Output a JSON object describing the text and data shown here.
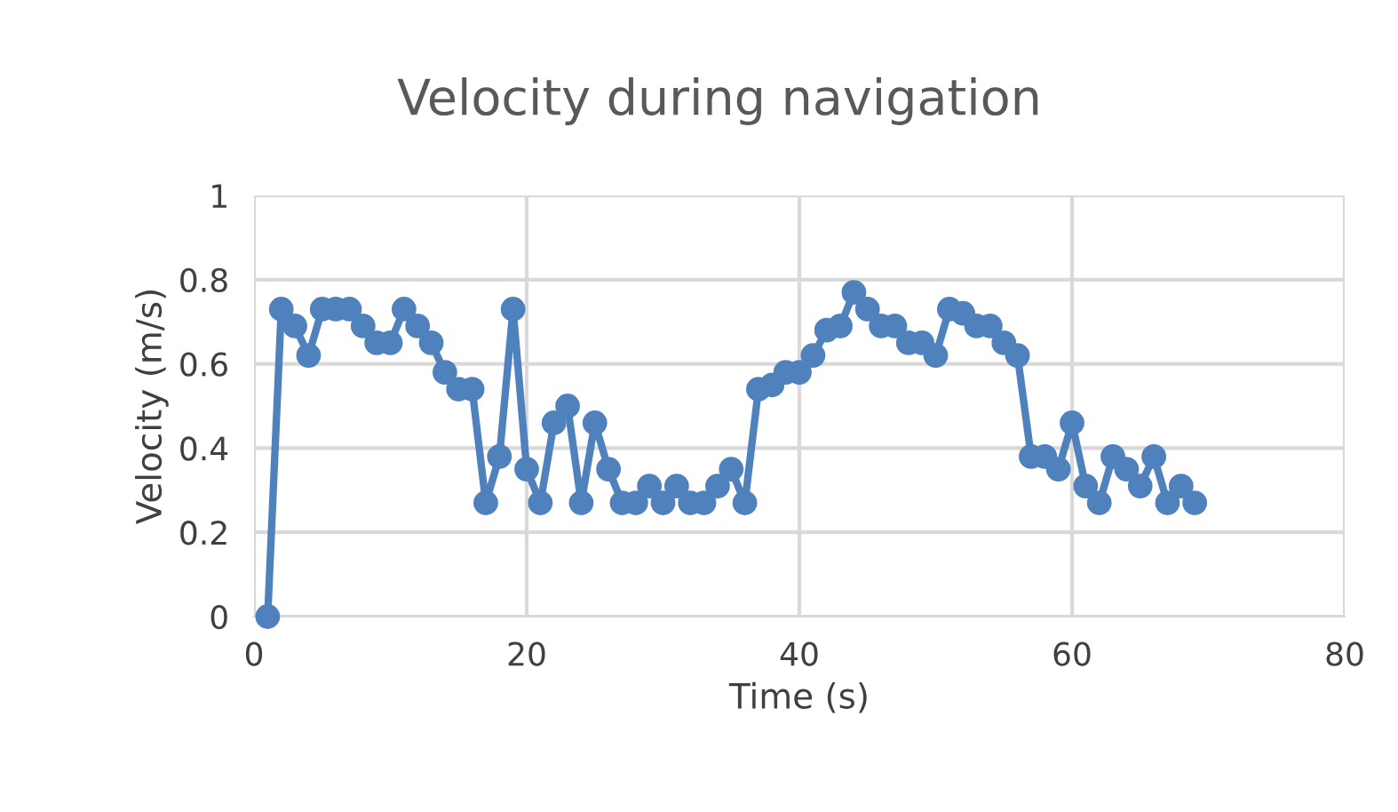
{
  "chart_data": {
    "type": "line",
    "title": "Velocity during navigation",
    "xlabel": "Time (s)",
    "ylabel": "Velocity (m/s)",
    "x": [
      1,
      2,
      3,
      4,
      5,
      6,
      7,
      8,
      9,
      10,
      11,
      12,
      13,
      14,
      15,
      16,
      17,
      18,
      19,
      20,
      21,
      22,
      23,
      24,
      25,
      26,
      27,
      28,
      29,
      30,
      31,
      32,
      33,
      34,
      35,
      36,
      37,
      38,
      39,
      40,
      41,
      42,
      43,
      44,
      45,
      46,
      47,
      48,
      49,
      50,
      51,
      52,
      53,
      54,
      55,
      56,
      57,
      58,
      59,
      60,
      61,
      62,
      63,
      64,
      65,
      66,
      67,
      68,
      69
    ],
    "series": [
      {
        "color": "#4f81bd",
        "values": [
          0,
          0.73,
          0.69,
          0.62,
          0.73,
          0.73,
          0.73,
          0.69,
          0.65,
          0.65,
          0.73,
          0.69,
          0.65,
          0.58,
          0.54,
          0.54,
          0.27,
          0.38,
          0.73,
          0.35,
          0.27,
          0.46,
          0.5,
          0.27,
          0.46,
          0.35,
          0.27,
          0.27,
          0.31,
          0.27,
          0.31,
          0.27,
          0.27,
          0.31,
          0.35,
          0.27,
          0.54,
          0.55,
          0.58,
          0.58,
          0.62,
          0.68,
          0.69,
          0.77,
          0.73,
          0.69,
          0.69,
          0.65,
          0.65,
          0.62,
          0.73,
          0.72,
          0.69,
          0.69,
          0.65,
          0.62,
          0.38,
          0.38,
          0.35,
          0.46,
          0.31,
          0.27,
          0.38,
          0.35,
          0.31,
          0.38,
          0.27,
          0.31,
          0.27
        ]
      }
    ],
    "xlim": [
      0,
      80
    ],
    "xticks": [
      0,
      20,
      40,
      60,
      80
    ],
    "ylim": [
      0,
      1
    ],
    "yticks": [
      0,
      0.2,
      0.4,
      0.6,
      0.8,
      1
    ],
    "grid": true,
    "marker": "circle",
    "line_style": "solid"
  }
}
